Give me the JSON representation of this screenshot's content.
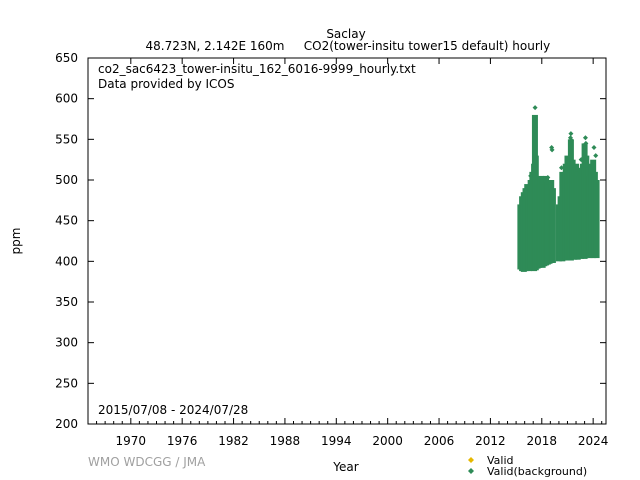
{
  "chart_data": {
    "type": "scatter",
    "title": "Saclay",
    "subtitle_left": "48.723N, 2.142E 160m",
    "subtitle_right": "CO2(tower-insitu tower15 default) hourly",
    "file_label": "co2_sac6423_tower-insitu_162_6016-9999_hourly.txt",
    "provider_label": "Data provided by ICOS",
    "date_range_label": "2015/07/08 - 2024/07/28",
    "xlabel": "Year",
    "ylabel": "ppm",
    "credit": "WMO WDCGG / JMA",
    "xlim": [
      1965,
      2025.5
    ],
    "ylim": [
      200,
      650
    ],
    "x_ticks": [
      1970,
      1976,
      1982,
      1988,
      1994,
      2000,
      2006,
      2012,
      2018,
      2024
    ],
    "y_ticks": [
      200,
      250,
      300,
      350,
      400,
      450,
      500,
      550,
      600,
      650
    ],
    "grid": false,
    "legend_position": "bottom-right",
    "series": [
      {
        "name": "Valid",
        "color": "#e6b800",
        "marker": "diamond",
        "points": []
      },
      {
        "name": "Valid(background)",
        "color": "#2e8b57",
        "marker": "diamond",
        "bands": [
          {
            "year": 2015.5,
            "low": 390,
            "high": 470
          },
          {
            "year": 2015.7,
            "low": 388,
            "high": 480
          },
          {
            "year": 2015.9,
            "low": 387,
            "high": 485
          },
          {
            "year": 2016.1,
            "low": 388,
            "high": 490
          },
          {
            "year": 2016.3,
            "low": 389,
            "high": 495
          },
          {
            "year": 2016.5,
            "low": 388,
            "high": 480
          },
          {
            "year": 2016.7,
            "low": 390,
            "high": 500
          },
          {
            "year": 2016.9,
            "low": 389,
            "high": 510
          },
          {
            "year": 2017.1,
            "low": 388,
            "high": 520
          },
          {
            "year": 2017.2,
            "low": 390,
            "high": 580
          },
          {
            "year": 2017.3,
            "low": 389,
            "high": 530
          },
          {
            "year": 2017.5,
            "low": 391,
            "high": 500
          },
          {
            "year": 2017.7,
            "low": 392,
            "high": 495
          },
          {
            "year": 2017.9,
            "low": 393,
            "high": 505
          },
          {
            "year": 2018.1,
            "low": 392,
            "high": 500
          },
          {
            "year": 2018.3,
            "low": 394,
            "high": 495
          },
          {
            "year": 2018.5,
            "low": 395,
            "high": 505
          },
          {
            "year": 2018.7,
            "low": 396,
            "high": 498
          },
          {
            "year": 2018.9,
            "low": 397,
            "high": 495
          },
          {
            "year": 2019.1,
            "low": 398,
            "high": 500
          },
          {
            "year": 2019.3,
            "low": 398,
            "high": 490
          },
          {
            "year": 2020.0,
            "low": 400,
            "high": 470
          },
          {
            "year": 2020.2,
            "low": 401,
            "high": 480
          },
          {
            "year": 2020.4,
            "low": 400,
            "high": 510
          },
          {
            "year": 2020.6,
            "low": 401,
            "high": 505
          },
          {
            "year": 2020.8,
            "low": 402,
            "high": 520
          },
          {
            "year": 2021.0,
            "low": 401,
            "high": 530
          },
          {
            "year": 2021.2,
            "low": 402,
            "high": 520
          },
          {
            "year": 2021.4,
            "low": 401,
            "high": 550
          },
          {
            "year": 2021.6,
            "low": 403,
            "high": 525
          },
          {
            "year": 2021.8,
            "low": 402,
            "high": 515
          },
          {
            "year": 2022.0,
            "low": 403,
            "high": 520
          },
          {
            "year": 2022.2,
            "low": 402,
            "high": 510
          },
          {
            "year": 2022.4,
            "low": 404,
            "high": 505
          },
          {
            "year": 2022.6,
            "low": 403,
            "high": 515
          },
          {
            "year": 2022.8,
            "low": 404,
            "high": 520
          },
          {
            "year": 2023.0,
            "low": 403,
            "high": 545
          },
          {
            "year": 2023.2,
            "low": 404,
            "high": 530
          },
          {
            "year": 2023.4,
            "low": 405,
            "high": 515
          },
          {
            "year": 2023.6,
            "low": 404,
            "high": 505
          },
          {
            "year": 2023.8,
            "low": 405,
            "high": 520
          },
          {
            "year": 2024.0,
            "low": 404,
            "high": 525
          },
          {
            "year": 2024.2,
            "low": 405,
            "high": 510
          },
          {
            "year": 2024.4,
            "low": 404,
            "high": 500
          }
        ],
        "outliers": [
          [
            2017.22,
            589
          ],
          [
            2017.18,
            575
          ],
          [
            2017.25,
            565
          ],
          [
            2017.15,
            560
          ],
          [
            2019.15,
            540
          ],
          [
            2019.2,
            537
          ],
          [
            2021.4,
            557
          ],
          [
            2021.35,
            552
          ],
          [
            2021.45,
            549
          ],
          [
            2023.1,
            552
          ],
          [
            2023.15,
            545
          ],
          [
            2023.0,
            540
          ],
          [
            2024.1,
            540
          ],
          [
            2024.3,
            530
          ],
          [
            2016.7,
            505
          ],
          [
            2018.7,
            503
          ],
          [
            2020.3,
            515
          ],
          [
            2022.6,
            525
          ]
        ]
      }
    ]
  }
}
